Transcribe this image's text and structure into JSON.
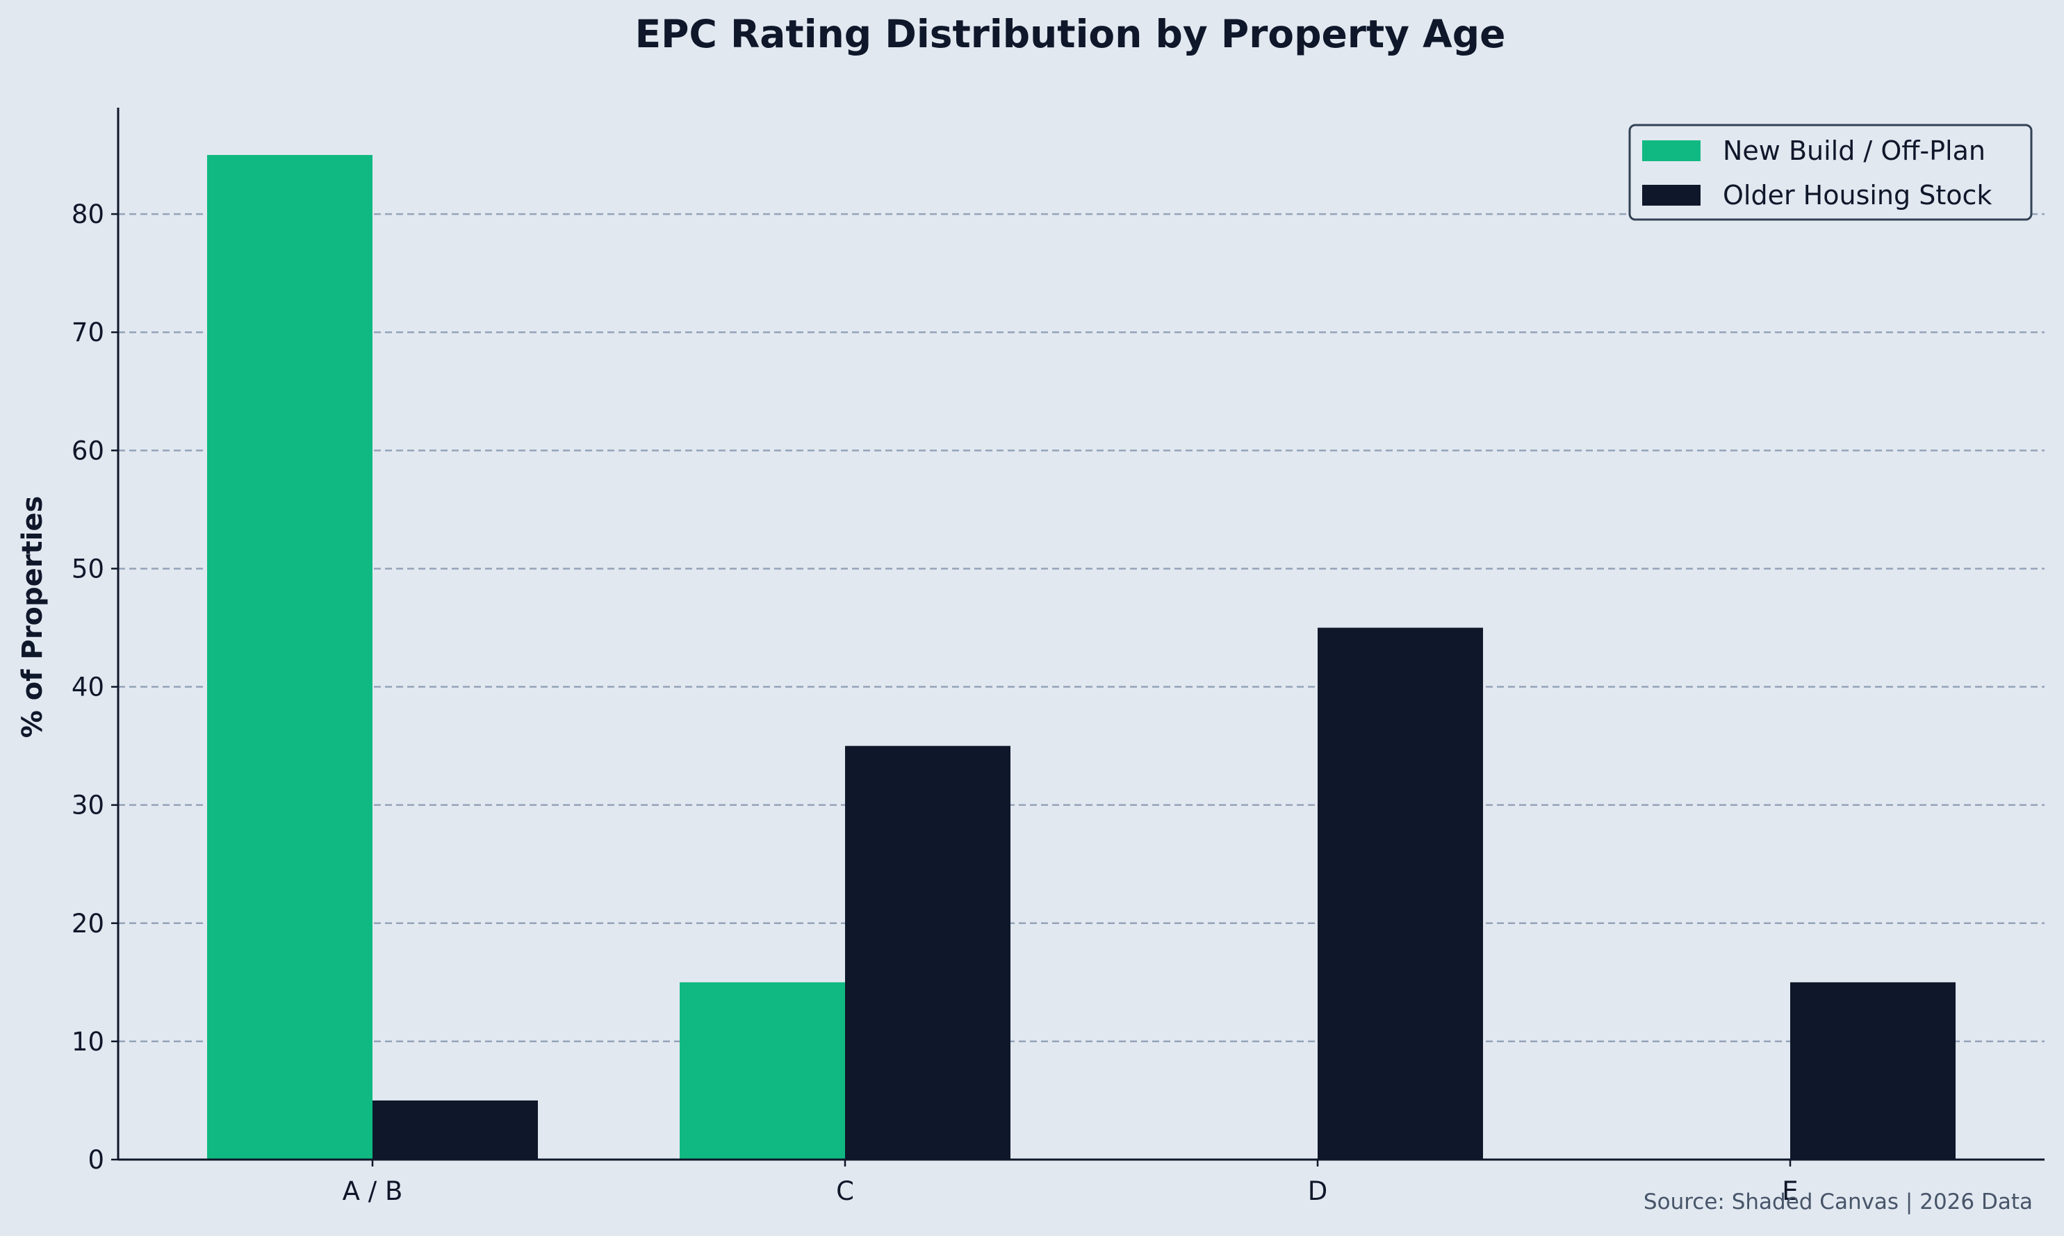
{
  "chart_data": {
    "type": "bar",
    "title": "EPC Rating Distribution by Property Age",
    "ylabel": "% of Properties",
    "xlabel": "",
    "categories": [
      "A / B",
      "C",
      "D",
      "E"
    ],
    "series": [
      {
        "name": "New Build / Off-Plan",
        "values": [
          85,
          15,
          0,
          0
        ],
        "color": "#10b981"
      },
      {
        "name": "Older Housing Stock",
        "values": [
          5,
          35,
          45,
          15
        ],
        "color": "#0f172a"
      }
    ],
    "ylim": [
      0,
      89
    ],
    "yticks": [
      0,
      10,
      20,
      30,
      40,
      50,
      60,
      70,
      80
    ],
    "grid": "horizontal-dashed",
    "legend_position": "top-right",
    "source_note": "Source: Shaded Canvas | 2026 Data"
  },
  "colors": {
    "background": "#e2e8f0",
    "axis": "#0f172a",
    "grid": "#94a3b8",
    "text": "#0f172a",
    "note": "#475569"
  }
}
